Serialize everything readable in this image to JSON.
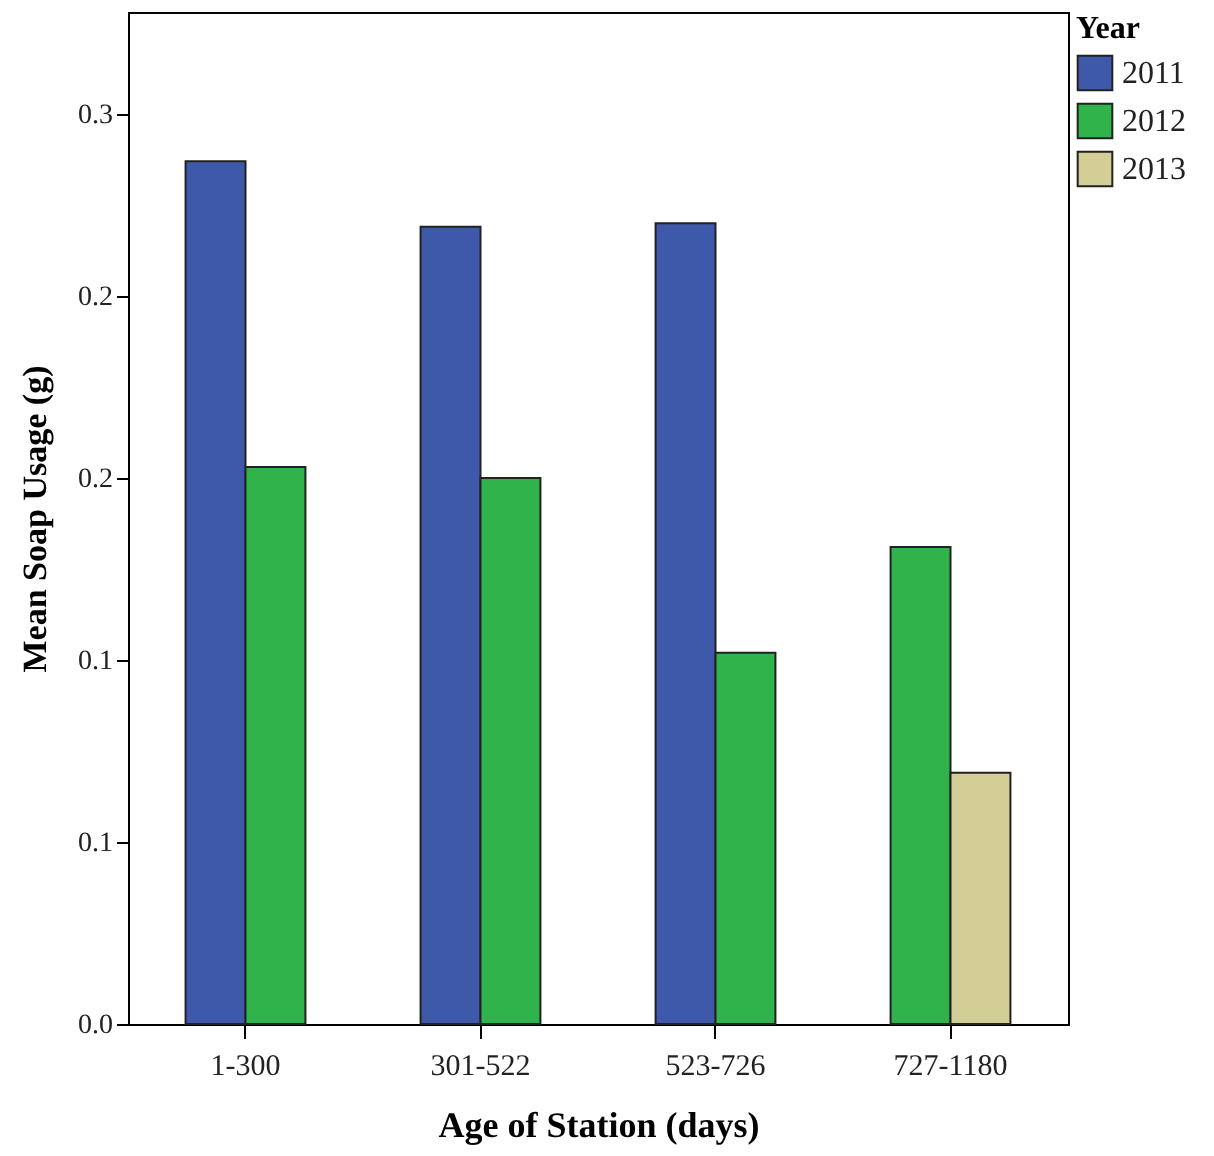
{
  "chart_data": {
    "type": "bar",
    "xlabel": "Age of Station (days)",
    "ylabel": "Mean Soap Usage (g)",
    "legend_title": "Year",
    "categories": [
      "1-300",
      "301-522",
      "523-726",
      "727-1180"
    ],
    "series": [
      {
        "name": "2011",
        "color": "#3f59aa",
        "values": [
          0.237,
          0.219,
          0.22,
          null
        ]
      },
      {
        "name": "2012",
        "color": "#2fb34a",
        "values": [
          0.153,
          0.15,
          0.102,
          0.131
        ]
      },
      {
        "name": "2013",
        "color": "#d3cd96",
        "values": [
          null,
          null,
          null,
          0.069
        ]
      }
    ],
    "ylim": [
      0,
      0.278
    ],
    "yticks": [
      {
        "value": 0,
        "label": "0.0"
      },
      {
        "value": 0.05,
        "label": "0.1"
      },
      {
        "value": 0.1,
        "label": "0.1"
      },
      {
        "value": 0.15,
        "label": "0.2"
      },
      {
        "value": 0.2,
        "label": "0.2"
      },
      {
        "value": 0.25,
        "label": "0.3"
      }
    ],
    "grid": false,
    "legend": "top right"
  }
}
